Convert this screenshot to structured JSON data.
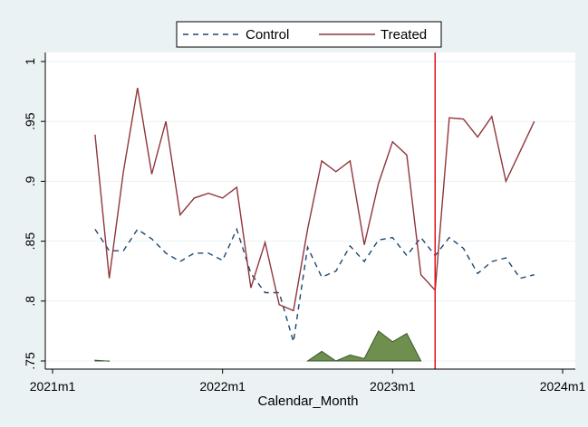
{
  "chart_data": {
    "type": "line",
    "xlabel": "Calendar_Month",
    "ylabel": "",
    "xlim": [
      "2021m1",
      "2024m1"
    ],
    "ylim": [
      0.75,
      1.0
    ],
    "x_ticks": [
      "2021m1",
      "2022m1",
      "2023m1",
      "2024m1"
    ],
    "y_ticks": [
      "1",
      ".95",
      ".9",
      ".85",
      ".8",
      ".75"
    ],
    "grid": true,
    "legend_position": "top-center",
    "background_color": "#eaf2f3",
    "plot_background_color": "#ffffff",
    "vertical_line": {
      "x": "2023m4",
      "color": "#e8101a"
    },
    "x": [
      "2021m4",
      "2021m5",
      "2021m6",
      "2021m7",
      "2021m8",
      "2021m9",
      "2021m10",
      "2021m11",
      "2021m12",
      "2022m1",
      "2022m2",
      "2022m3",
      "2022m4",
      "2022m5",
      "2022m6",
      "2022m7",
      "2022m8",
      "2022m9",
      "2022m10",
      "2022m11",
      "2022m12",
      "2023m1",
      "2023m2",
      "2023m3",
      "2023m4",
      "2023m5",
      "2023m6",
      "2023m7",
      "2023m8",
      "2023m9",
      "2023m10",
      "2023m11"
    ],
    "series": [
      {
        "name": "Control",
        "color": "#1a476f",
        "style": "dashed",
        "values": [
          0.86,
          0.842,
          0.842,
          0.86,
          0.852,
          0.84,
          0.833,
          0.84,
          0.84,
          0.834,
          0.86,
          0.823,
          0.807,
          0.807,
          0.766,
          0.845,
          0.82,
          0.825,
          0.846,
          0.833,
          0.851,
          0.853,
          0.838,
          0.853,
          0.838,
          0.853,
          0.844,
          0.823,
          0.833,
          0.836,
          0.819,
          0.822
        ]
      },
      {
        "name": "Treated",
        "color": "#90353b",
        "style": "solid",
        "values": [
          0.939,
          0.819,
          0.908,
          0.978,
          0.906,
          0.95,
          0.872,
          0.886,
          0.89,
          0.886,
          0.895,
          0.811,
          0.849,
          0.797,
          0.792,
          0.86,
          0.917,
          0.908,
          0.917,
          0.847,
          0.898,
          0.933,
          0.922,
          0.822,
          0.809,
          0.953,
          0.952,
          0.937,
          0.954,
          0.9,
          0.925,
          0.95
        ]
      }
    ],
    "area": {
      "color": "#6f8f4e",
      "edge_color": "#3d5a2e",
      "baseline": 0.75,
      "segments": [
        {
          "x": [
            "2021m4",
            "2021m5"
          ],
          "values": [
            0.7506,
            0.7498
          ]
        },
        {
          "x": [
            "2022m7",
            "2022m8",
            "2022m9",
            "2022m10",
            "2022m11",
            "2022m12",
            "2023m1",
            "2023m2",
            "2023m3"
          ],
          "values": [
            0.75,
            0.758,
            0.75,
            0.755,
            0.752,
            0.775,
            0.766,
            0.773,
            0.75
          ]
        }
      ]
    }
  }
}
